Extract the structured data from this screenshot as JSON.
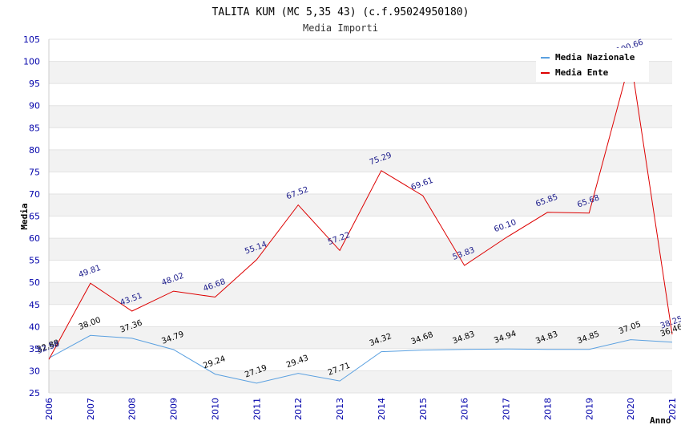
{
  "chart_data": {
    "type": "line",
    "title": "TALITA KUM (MC 5,35 43) (c.f.95024950180)",
    "subtitle": "Media Importi",
    "xlabel": "Anno",
    "ylabel": "Media",
    "ylim": [
      25,
      105
    ],
    "yticks": [
      25,
      30,
      35,
      40,
      45,
      50,
      55,
      60,
      65,
      70,
      75,
      80,
      85,
      90,
      95,
      100,
      105
    ],
    "grid": true,
    "legend_position": "top-right",
    "x": [
      "2006",
      "2007",
      "2008",
      "2009",
      "2010",
      "2011",
      "2012",
      "2013",
      "2014",
      "2015",
      "2016",
      "2017",
      "2018",
      "2019",
      "2020",
      "2021"
    ],
    "series": [
      {
        "name": "Media Nazionale",
        "color": "#5aa0e0",
        "labels": [
          "32.88",
          "38.00",
          "37.36",
          "34.79",
          "29.24",
          "27.19",
          "29.43",
          "27.71",
          "34.32",
          "34.68",
          "34.83",
          "34.94",
          "34.83",
          "34.85",
          "37.05",
          "36.46"
        ],
        "values": [
          32.88,
          38.0,
          37.36,
          34.79,
          29.24,
          27.19,
          29.43,
          27.71,
          34.32,
          34.68,
          34.83,
          34.94,
          34.83,
          34.85,
          37.05,
          36.46
        ]
      },
      {
        "name": "Media Ente",
        "color": "#dd0000",
        "labels": [
          "32.58",
          "49.81",
          "43.51",
          "48.02",
          "46.68",
          "55.14",
          "67.52",
          "57.22",
          "75.29",
          "69.61",
          "53.83",
          "60.10",
          "65.85",
          "65.68",
          "100.66",
          "38.25"
        ],
        "values": [
          32.58,
          49.81,
          43.51,
          48.02,
          46.68,
          55.14,
          67.52,
          57.22,
          75.29,
          69.61,
          53.83,
          60.1,
          65.85,
          65.68,
          100.66,
          38.25
        ]
      }
    ]
  }
}
